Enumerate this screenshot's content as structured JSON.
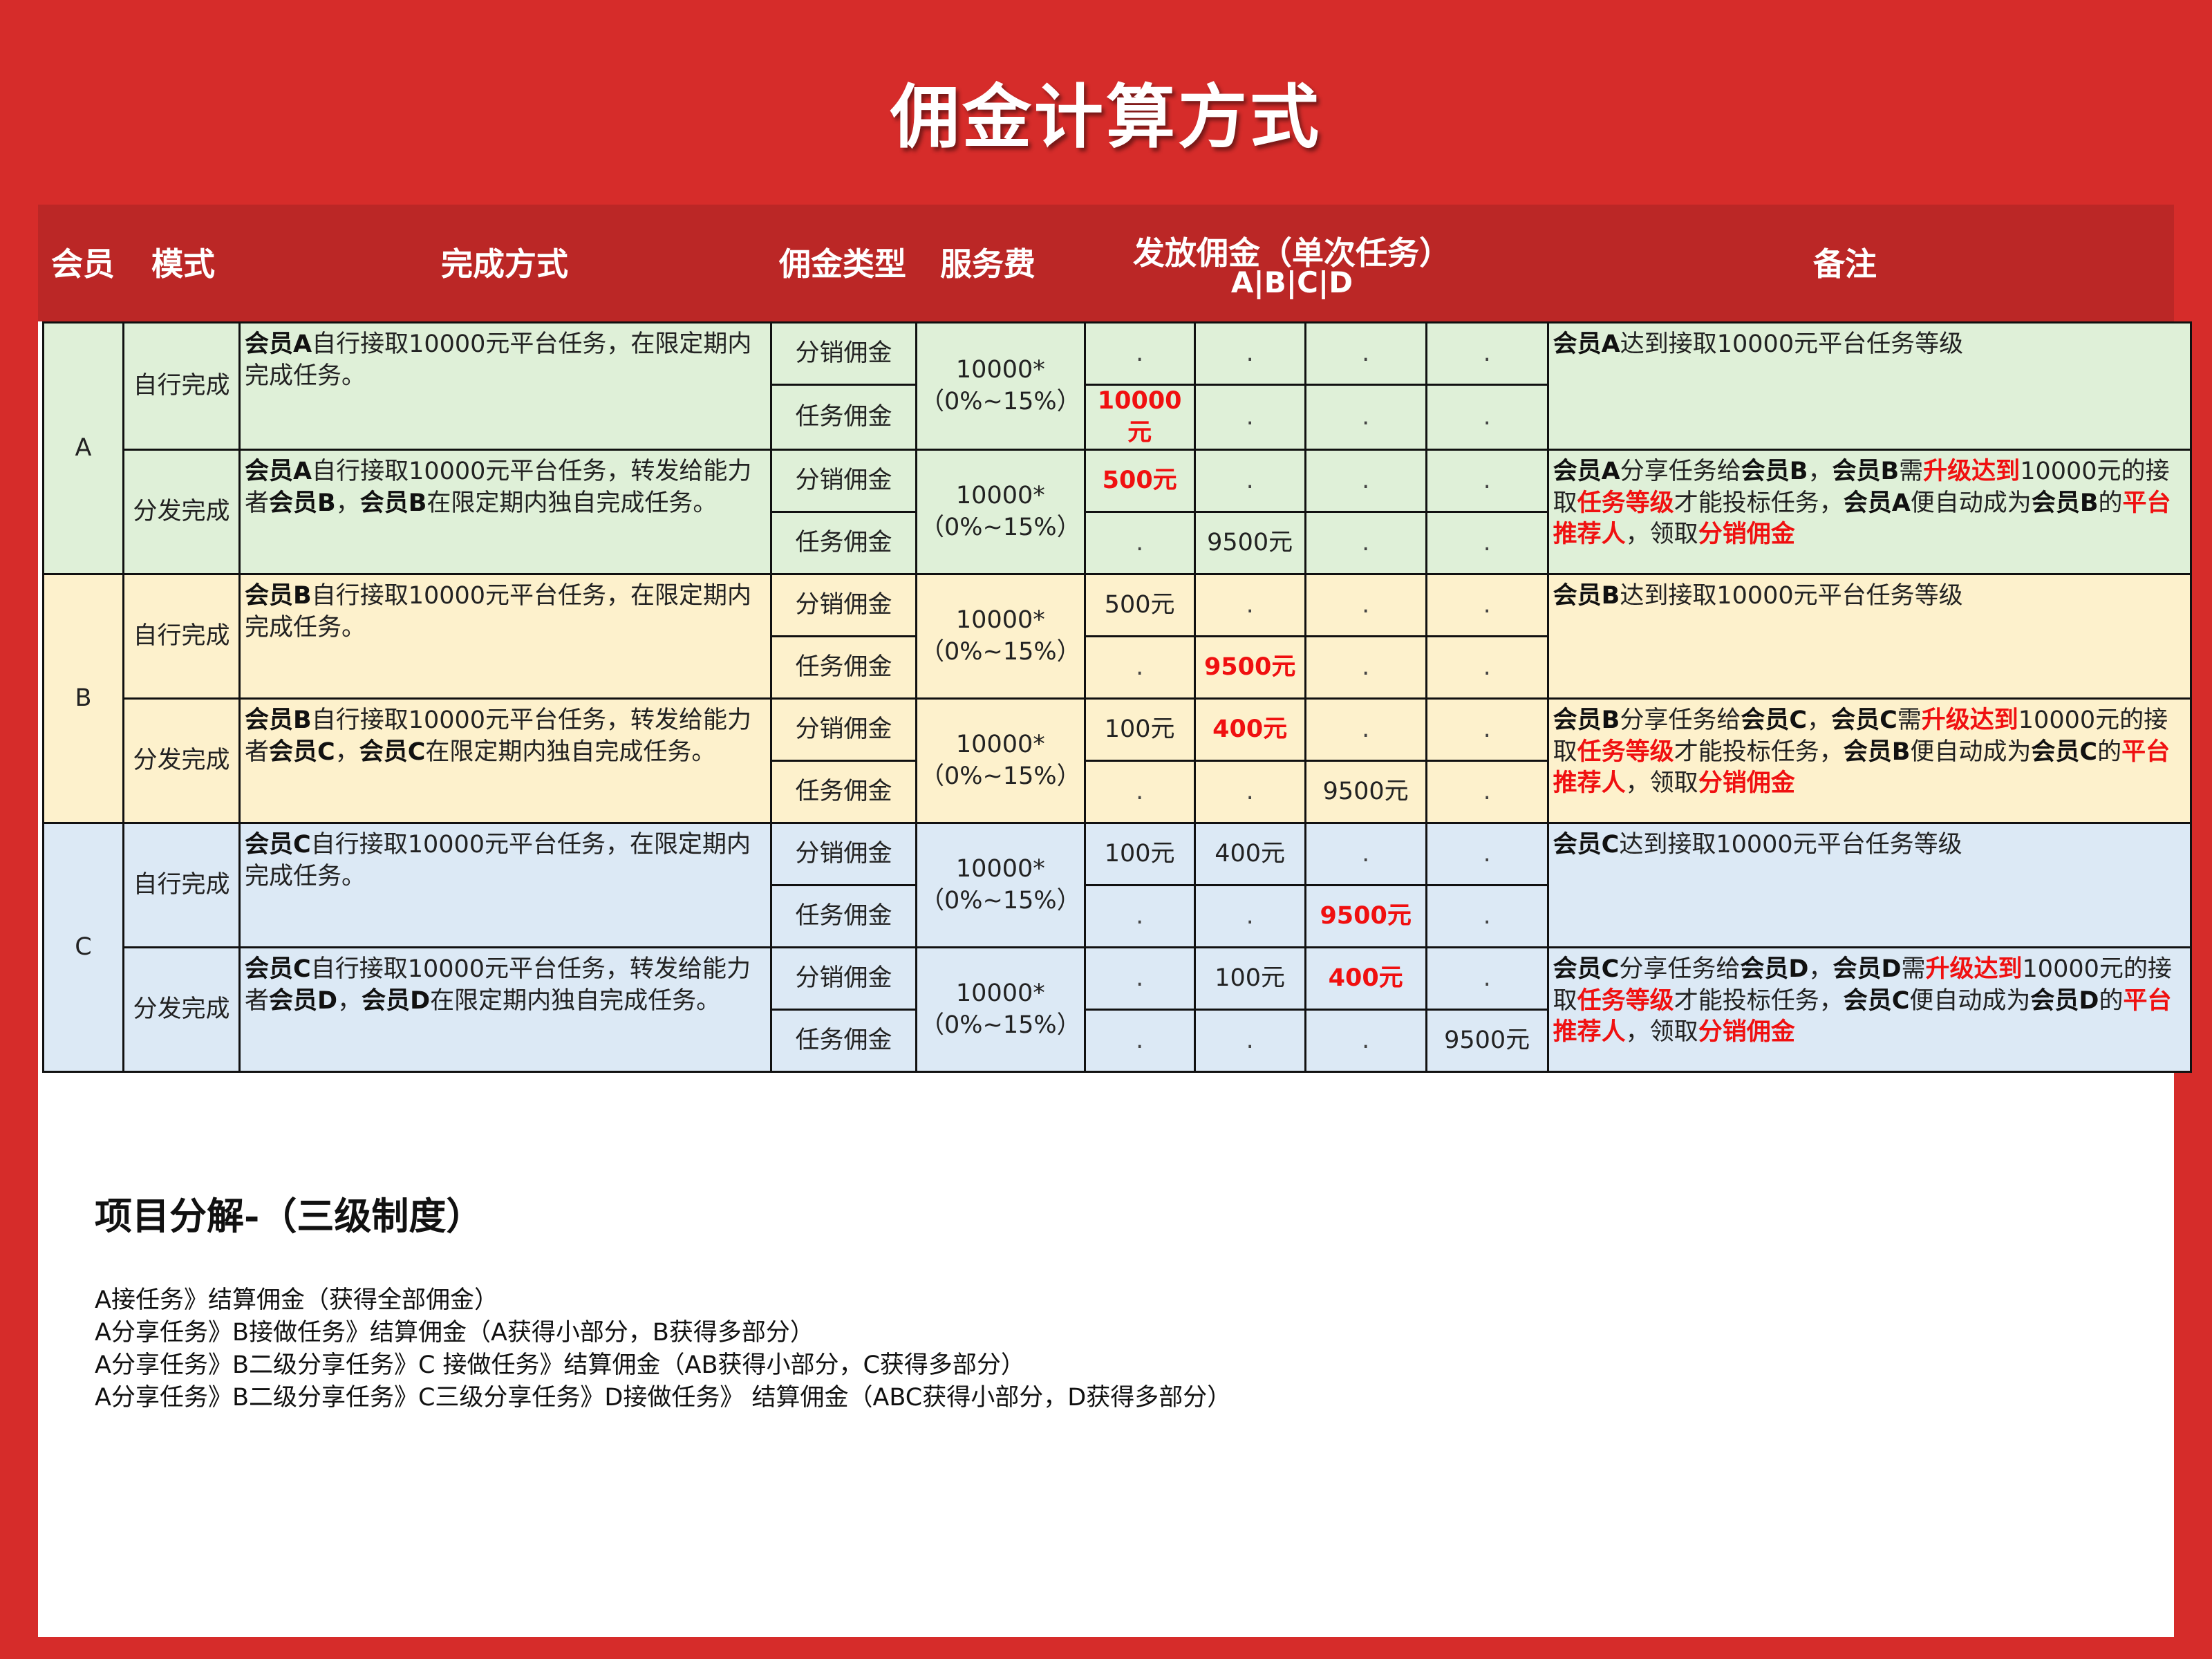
{
  "title": "佣金计算方式",
  "header": {
    "member": "会员",
    "mode": "模式",
    "method": "完成方式",
    "type": "佣金类型",
    "fee": "服务费",
    "payout": "发放佣金（单次任务）",
    "payout_sub": "A|B|C|D",
    "remark": "备注"
  },
  "groups": [
    {
      "member": "A",
      "modes": [
        {
          "mode": "自行完成",
          "method": [
            {
              "t": "会员A",
              "b": 1
            },
            {
              "t": "自行接取10000元平台任务，在限定期内完成任务。"
            }
          ],
          "fee": "10000*（0%~15%）",
          "rows": [
            {
              "type": "分销佣金",
              "vals": [
                {
                  "v": "."
                },
                {
                  "v": "."
                },
                {
                  "v": "."
                },
                {
                  "v": "."
                }
              ]
            },
            {
              "type": "任务佣金",
              "vals": [
                {
                  "v": "10000元",
                  "red": true
                },
                {
                  "v": "."
                },
                {
                  "v": "."
                },
                {
                  "v": "."
                }
              ]
            }
          ],
          "remark": [
            {
              "t": "会员A",
              "b": 1
            },
            {
              "t": "达到接取10000元平台任务等级"
            }
          ]
        },
        {
          "mode": "分发完成",
          "method": [
            {
              "t": "会员A",
              "b": 1
            },
            {
              "t": "自行接取10000元平台任务，转发给能力者"
            },
            {
              "t": "会员B",
              "b": 1
            },
            {
              "t": "，"
            },
            {
              "t": "会员B",
              "b": 1
            },
            {
              "t": "在限定期内独自完成任务。"
            }
          ],
          "fee": "10000*（0%~15%）",
          "rows": [
            {
              "type": "分销佣金",
              "vals": [
                {
                  "v": "500元",
                  "red": true
                },
                {
                  "v": "."
                },
                {
                  "v": "."
                },
                {
                  "v": "."
                }
              ]
            },
            {
              "type": "任务佣金",
              "vals": [
                {
                  "v": "."
                },
                {
                  "v": "9500元"
                },
                {
                  "v": "."
                },
                {
                  "v": "."
                }
              ]
            }
          ],
          "remark": [
            {
              "t": "会员A",
              "b": 1
            },
            {
              "t": "分享任务给"
            },
            {
              "t": "会员B",
              "b": 1
            },
            {
              "t": "，"
            },
            {
              "t": "会员B",
              "b": 1
            },
            {
              "t": "需"
            },
            {
              "t": "升级达到",
              "r": 1
            },
            {
              "t": "10000元的接取"
            },
            {
              "t": "任务等级",
              "r": 1
            },
            {
              "t": "才能投标任务，"
            },
            {
              "t": "会员A",
              "b": 1
            },
            {
              "t": "便自动成为"
            },
            {
              "t": "会员B",
              "b": 1
            },
            {
              "t": "的"
            },
            {
              "t": "平台推荐人",
              "r": 1
            },
            {
              "t": "，领取"
            },
            {
              "t": "分销佣金",
              "r": 1
            }
          ]
        }
      ]
    },
    {
      "member": "B",
      "modes": [
        {
          "mode": "自行完成",
          "method": [
            {
              "t": "会员B",
              "b": 1
            },
            {
              "t": "自行接取10000元平台任务，在限定期内完成任务。"
            }
          ],
          "fee": "10000*（0%~15%）",
          "rows": [
            {
              "type": "分销佣金",
              "vals": [
                {
                  "v": "500元"
                },
                {
                  "v": "."
                },
                {
                  "v": "."
                },
                {
                  "v": "."
                }
              ]
            },
            {
              "type": "任务佣金",
              "vals": [
                {
                  "v": "."
                },
                {
                  "v": "9500元",
                  "red": true
                },
                {
                  "v": "."
                },
                {
                  "v": "."
                }
              ]
            }
          ],
          "remark": [
            {
              "t": "会员B",
              "b": 1
            },
            {
              "t": "达到接取10000元平台任务等级"
            }
          ]
        },
        {
          "mode": "分发完成",
          "method": [
            {
              "t": "会员B",
              "b": 1
            },
            {
              "t": "自行接取10000元平台任务，转发给能力者"
            },
            {
              "t": "会员C",
              "b": 1
            },
            {
              "t": "，"
            },
            {
              "t": "会员C",
              "b": 1
            },
            {
              "t": "在限定期内独自完成任务。"
            }
          ],
          "fee": "10000*（0%~15%）",
          "rows": [
            {
              "type": "分销佣金",
              "vals": [
                {
                  "v": "100元"
                },
                {
                  "v": "400元",
                  "red": true
                },
                {
                  "v": "."
                },
                {
                  "v": "."
                }
              ]
            },
            {
              "type": "任务佣金",
              "vals": [
                {
                  "v": "."
                },
                {
                  "v": "."
                },
                {
                  "v": "9500元"
                },
                {
                  "v": "."
                }
              ]
            }
          ],
          "remark": [
            {
              "t": "会员B",
              "b": 1
            },
            {
              "t": "分享任务给"
            },
            {
              "t": "会员C",
              "b": 1
            },
            {
              "t": "，"
            },
            {
              "t": "会员C",
              "b": 1
            },
            {
              "t": "需"
            },
            {
              "t": "升级达到",
              "r": 1
            },
            {
              "t": "10000元的接取"
            },
            {
              "t": "任务等级",
              "r": 1
            },
            {
              "t": "才能投标任务，"
            },
            {
              "t": "会员B",
              "b": 1
            },
            {
              "t": "便自动成为"
            },
            {
              "t": "会员C",
              "b": 1
            },
            {
              "t": "的"
            },
            {
              "t": "平台推荐人",
              "r": 1
            },
            {
              "t": "，领取"
            },
            {
              "t": "分销佣金",
              "r": 1
            }
          ]
        }
      ]
    },
    {
      "member": "C",
      "modes": [
        {
          "mode": "自行完成",
          "method": [
            {
              "t": "会员C",
              "b": 1
            },
            {
              "t": "自行接取10000元平台任务，在限定期内完成任务。"
            }
          ],
          "fee": "10000*（0%~15%）",
          "rows": [
            {
              "type": "分销佣金",
              "vals": [
                {
                  "v": "100元"
                },
                {
                  "v": "400元"
                },
                {
                  "v": "."
                },
                {
                  "v": "."
                }
              ]
            },
            {
              "type": "任务佣金",
              "vals": [
                {
                  "v": "."
                },
                {
                  "v": "."
                },
                {
                  "v": "9500元",
                  "red": true
                },
                {
                  "v": "."
                }
              ]
            }
          ],
          "remark": [
            {
              "t": "会员C",
              "b": 1
            },
            {
              "t": "达到接取10000元平台任务等级"
            }
          ]
        },
        {
          "mode": "分发完成",
          "method": [
            {
              "t": "会员C",
              "b": 1
            },
            {
              "t": "自行接取10000元平台任务，转发给能力者"
            },
            {
              "t": "会员D",
              "b": 1
            },
            {
              "t": "，"
            },
            {
              "t": "会员D",
              "b": 1
            },
            {
              "t": "在限定期内独自完成任务。"
            }
          ],
          "fee": "10000*（0%~15%）",
          "rows": [
            {
              "type": "分销佣金",
              "vals": [
                {
                  "v": "."
                },
                {
                  "v": "100元"
                },
                {
                  "v": "400元",
                  "red": true
                },
                {
                  "v": "."
                }
              ]
            },
            {
              "type": "任务佣金",
              "vals": [
                {
                  "v": "."
                },
                {
                  "v": "."
                },
                {
                  "v": "."
                },
                {
                  "v": "9500元"
                }
              ]
            }
          ],
          "remark": [
            {
              "t": "会员C",
              "b": 1
            },
            {
              "t": "分享任务给"
            },
            {
              "t": "会员D",
              "b": 1
            },
            {
              "t": "，"
            },
            {
              "t": "会员D",
              "b": 1
            },
            {
              "t": "需"
            },
            {
              "t": "升级达到",
              "r": 1
            },
            {
              "t": "10000元的接取"
            },
            {
              "t": "任务等级",
              "r": 1
            },
            {
              "t": "才能投标任务，"
            },
            {
              "t": "会员C",
              "b": 1
            },
            {
              "t": "便自动成为"
            },
            {
              "t": "会员D",
              "b": 1
            },
            {
              "t": "的"
            },
            {
              "t": "平台推荐人",
              "r": 1
            },
            {
              "t": "，领取"
            },
            {
              "t": "分销佣金",
              "r": 1
            }
          ]
        }
      ]
    }
  ],
  "breakdown": {
    "title": "项目分解-（三级制度）",
    "lines": [
      "A接任务》结算佣金（获得全部佣金）",
      "A分享任务》B接做任务》结算佣金（A获得小部分，B获得多部分）",
      "A分享任务》B二级分享任务》C 接做任务》结算佣金（AB获得小部分，C获得多部分）",
      "A分享任务》B二级分享任务》C三级分享任务》D接做任务》 结算佣金（ABC获得小部分，D获得多部分）"
    ]
  },
  "colors": {
    "background": "#d62c2a",
    "header": "#bb2726",
    "group_a": "#dff0d8",
    "group_b": "#fdf1cc",
    "group_c": "#dce9f5",
    "highlight": "#f01010"
  }
}
